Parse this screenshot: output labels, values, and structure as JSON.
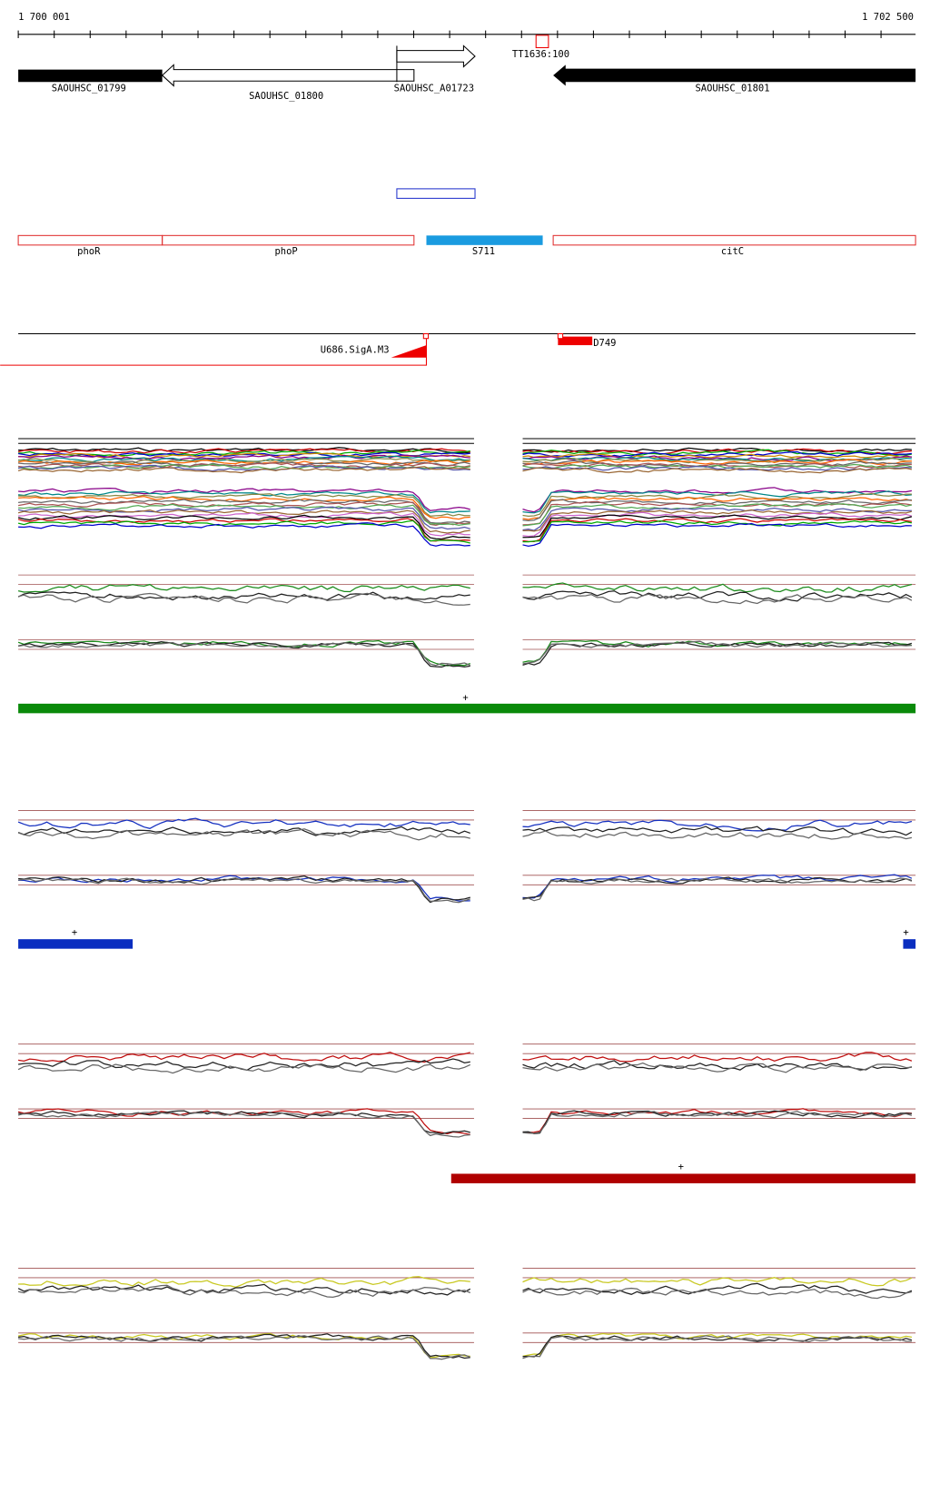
{
  "ruler": {
    "start": "1 700 001",
    "end": "1 702 500"
  },
  "genes": [
    "SAOUHSC_01799",
    "SAOUHSC_01800",
    "SAOUHSC_A01723",
    "SAOUHSC_01801"
  ],
  "terminator": "TT1636:100",
  "regions": [
    "phoR",
    "phoP",
    "S711",
    "citC"
  ],
  "promoters": [
    "U686.SigA.M3",
    "D749"
  ],
  "strands": [
    "+",
    "+",
    "+",
    "+",
    "+"
  ]
}
